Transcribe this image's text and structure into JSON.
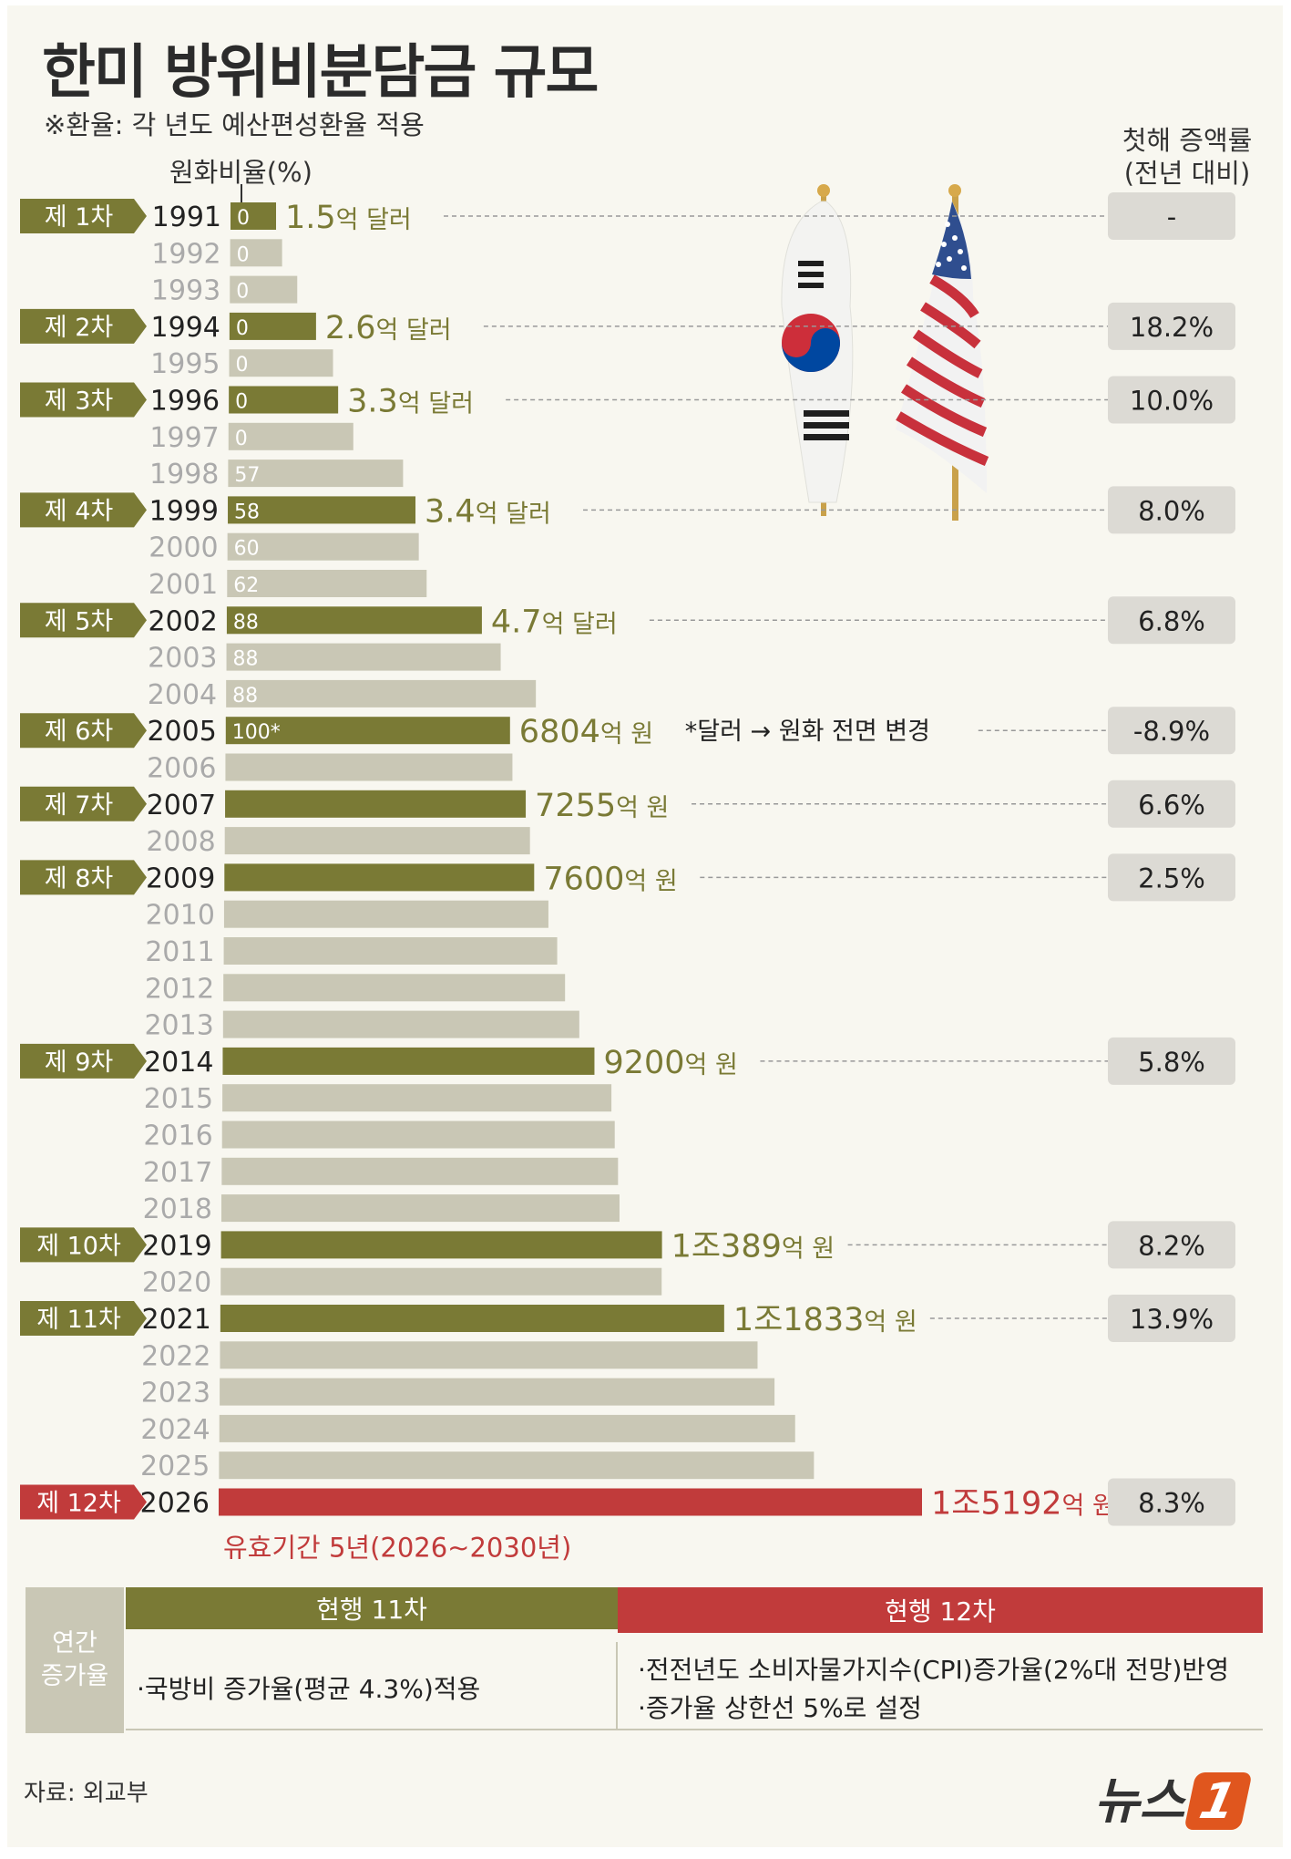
{
  "title": "한미 방위비분담금 규모",
  "note": "※환율: 각 년도 예산편성환율 적용",
  "rate_header": "원화비율(%)",
  "increase_header": [
    "첫해 증액률",
    "(전년 대비)"
  ],
  "chart_data": {
    "type": "bar",
    "orientation": "horizontal",
    "colors": {
      "agreement": "#7a7a35",
      "other": "#c9c7b5",
      "latest": "#c13b3b",
      "badge": "#7a7a35",
      "increase_box": "#dcdad4"
    },
    "years": [
      {
        "year": "1991",
        "rate": "0",
        "agreement": "제 1차",
        "amount": "1.5",
        "unit": "억 달러",
        "increase": "-"
      },
      {
        "year": "1992",
        "rate": "0"
      },
      {
        "year": "1993",
        "rate": "0"
      },
      {
        "year": "1994",
        "rate": "0",
        "agreement": "제 2차",
        "amount": "2.6",
        "unit": "억 달러",
        "increase": "18.2%"
      },
      {
        "year": "1995",
        "rate": "0"
      },
      {
        "year": "1996",
        "rate": "0",
        "agreement": "제 3차",
        "amount": "3.3",
        "unit": "억 달러",
        "increase": "10.0%"
      },
      {
        "year": "1997",
        "rate": "0"
      },
      {
        "year": "1998",
        "rate": "57"
      },
      {
        "year": "1999",
        "rate": "58",
        "agreement": "제 4차",
        "amount": "3.4",
        "unit": "억 달러",
        "increase": "8.0%"
      },
      {
        "year": "2000",
        "rate": "60"
      },
      {
        "year": "2001",
        "rate": "62"
      },
      {
        "year": "2002",
        "rate": "88",
        "agreement": "제 5차",
        "amount": "4.7",
        "unit": "억 달러",
        "increase": "6.8%"
      },
      {
        "year": "2003",
        "rate": "88"
      },
      {
        "year": "2004",
        "rate": "88"
      },
      {
        "year": "2005",
        "rate": "100*",
        "agreement": "제 6차",
        "amount": "6804",
        "unit": "억 원",
        "extra": "*달러 → 원화 전면 변경",
        "increase": "-8.9%"
      },
      {
        "year": "2006"
      },
      {
        "year": "2007",
        "agreement": "제 7차",
        "amount": "7255",
        "unit": "억 원",
        "increase": "6.6%"
      },
      {
        "year": "2008"
      },
      {
        "year": "2009",
        "agreement": "제 8차",
        "amount": "7600",
        "unit": "억 원",
        "increase": "2.5%"
      },
      {
        "year": "2010"
      },
      {
        "year": "2011"
      },
      {
        "year": "2012"
      },
      {
        "year": "2013"
      },
      {
        "year": "2014",
        "agreement": "제 9차",
        "amount": "9200",
        "unit": "억 원",
        "increase": "5.8%"
      },
      {
        "year": "2015"
      },
      {
        "year": "2016"
      },
      {
        "year": "2017"
      },
      {
        "year": "2018"
      },
      {
        "year": "2019",
        "agreement": "제 10차",
        "amount": "1조389",
        "unit": "억 원",
        "increase": "8.2%"
      },
      {
        "year": "2020"
      },
      {
        "year": "2021",
        "agreement": "제 11차",
        "amount": "1조1833",
        "unit": "억 원",
        "increase": "13.9%"
      },
      {
        "year": "2022"
      },
      {
        "year": "2023"
      },
      {
        "year": "2024"
      },
      {
        "year": "2025"
      },
      {
        "year": "2026",
        "agreement": "제 12차",
        "amount": "1조5192",
        "unit": "억 원",
        "increase": "8.3%",
        "latest": true
      }
    ],
    "validity_note": "유효기간 5년(2026~2030년)"
  },
  "bottom": {
    "label": [
      "연간",
      "증가율"
    ],
    "col11_header": "현행 11차",
    "col12_header": "현행 12차",
    "col11_text": "·국방비 증가율(평균 4.3%)적용",
    "col12_text": [
      "·전전년도 소비자물가지수(CPI)증가율(2%대 전망)반영",
      "·증가율 상한선 5%로 설정"
    ]
  },
  "source": "자료: 외교부",
  "logo": {
    "text": "뉴스",
    "mark": "1"
  }
}
